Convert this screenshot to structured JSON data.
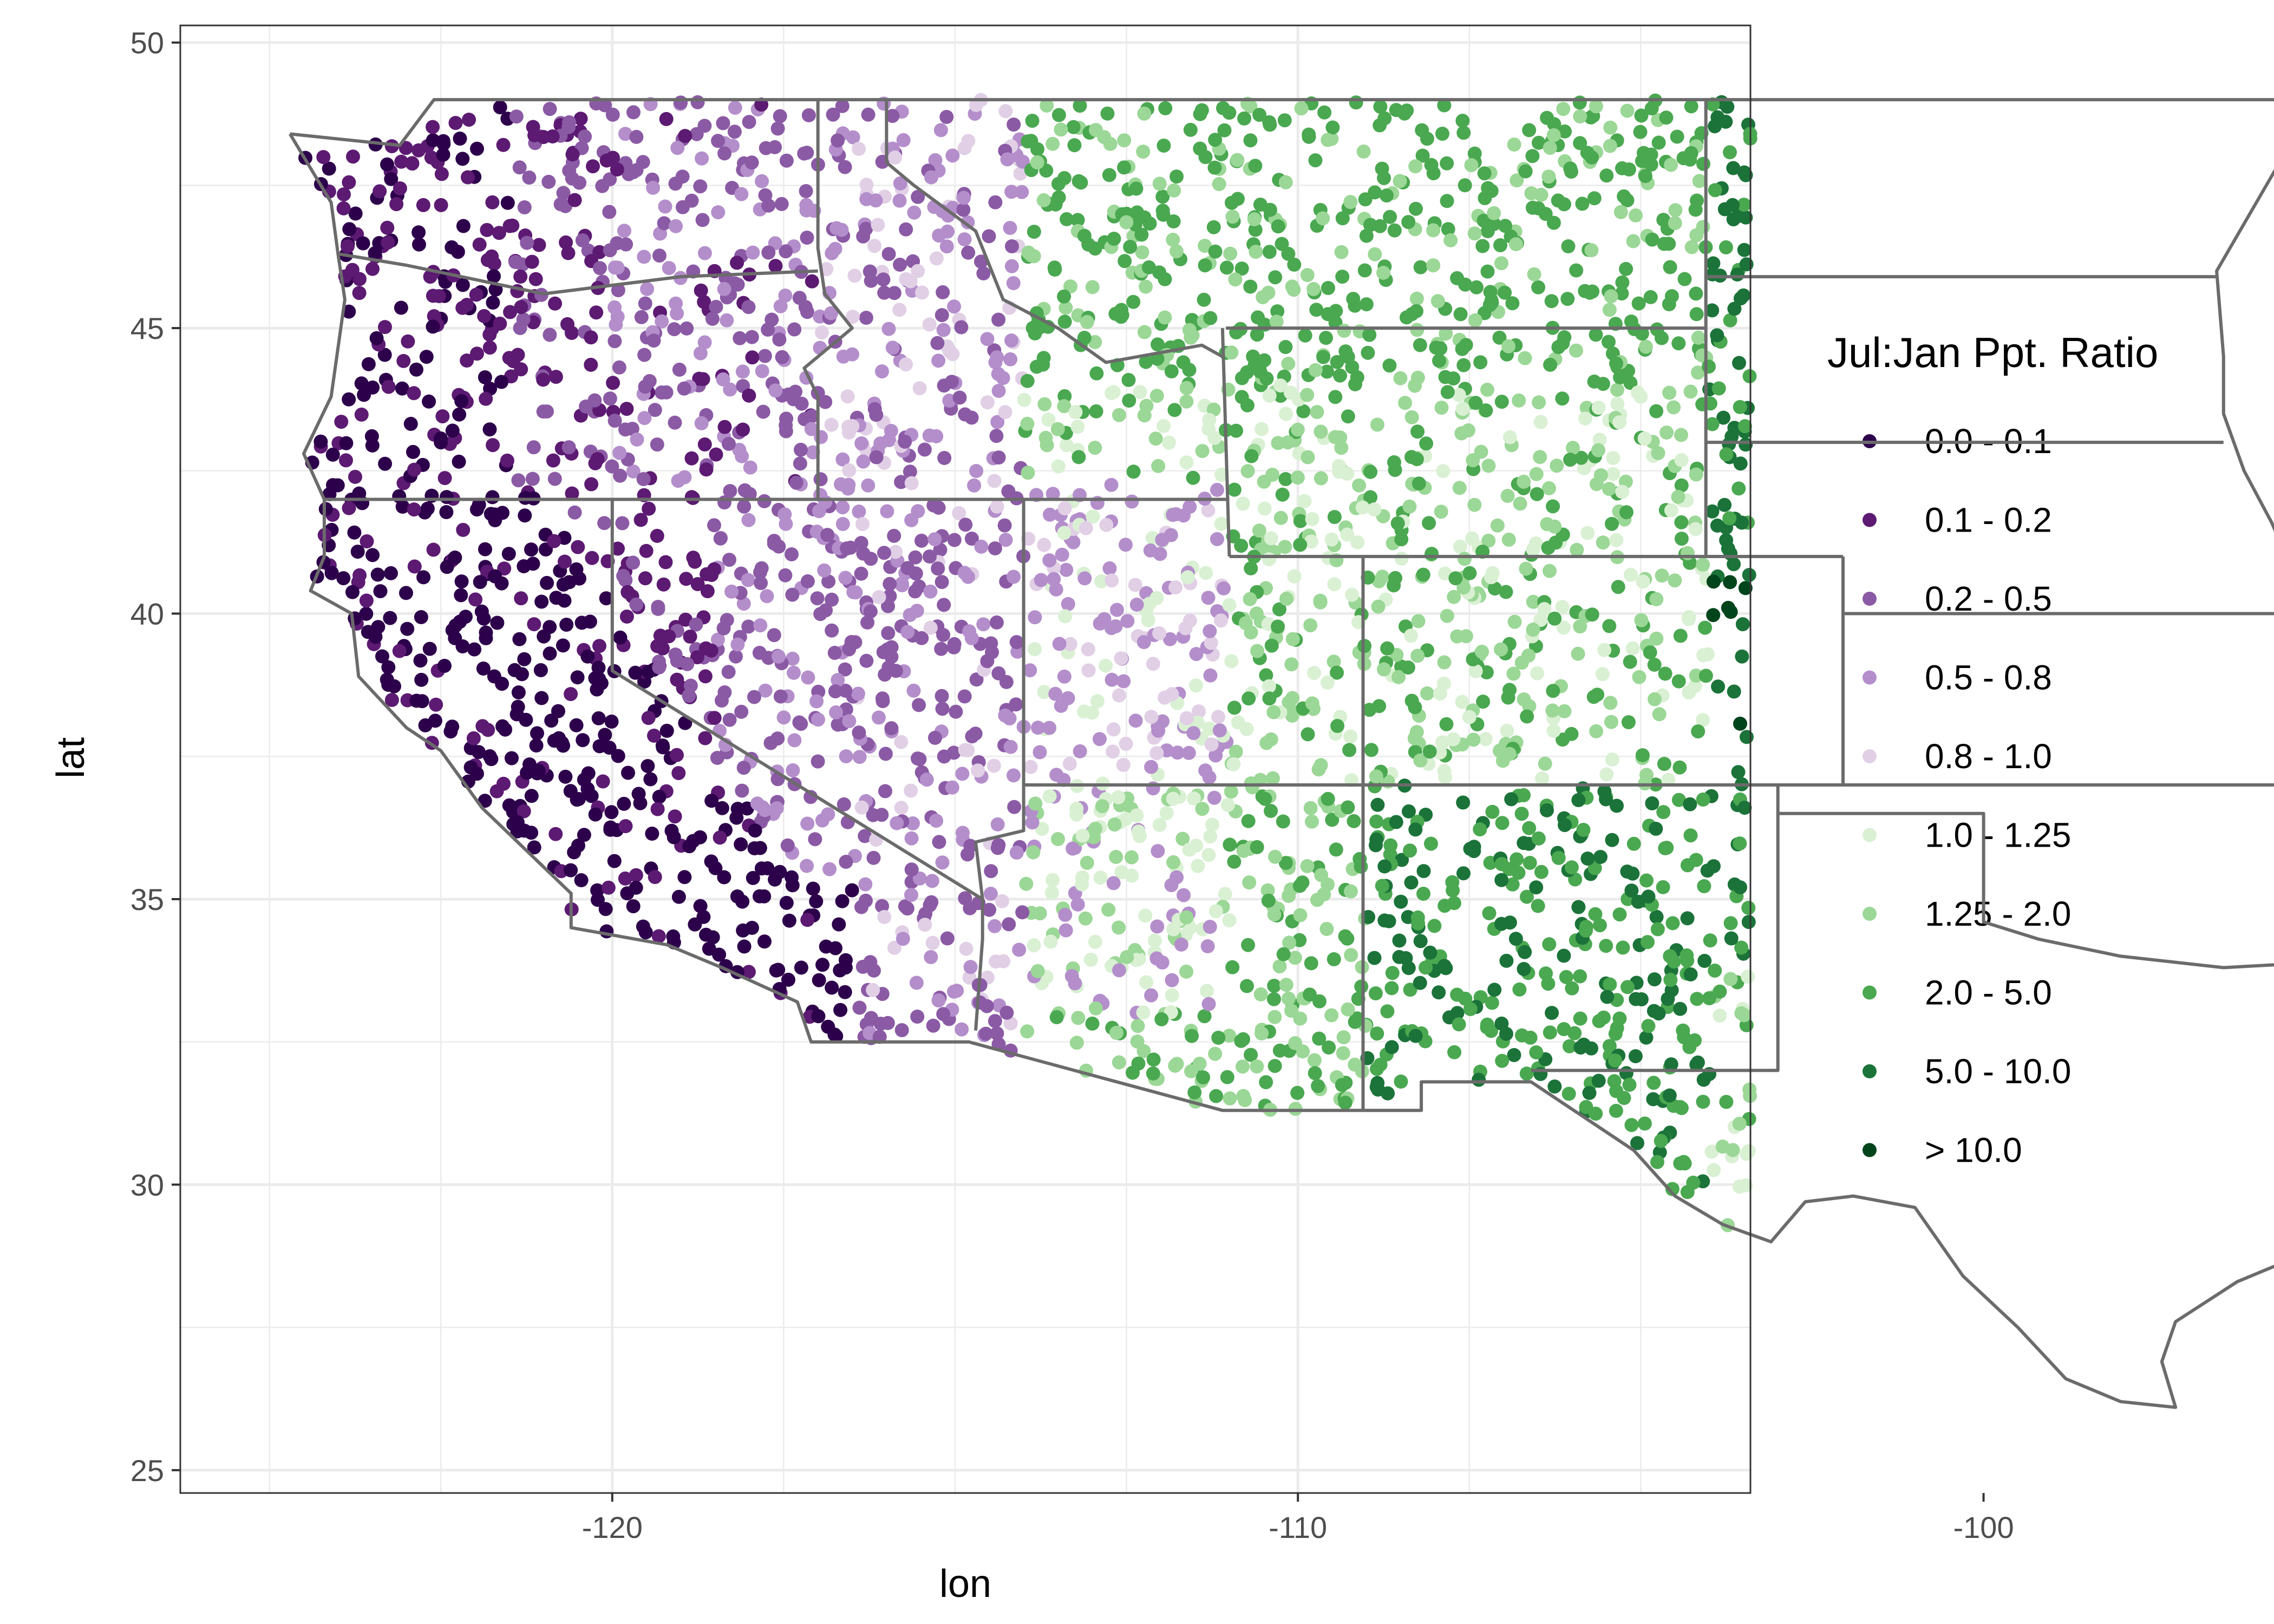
{
  "chart_data": {
    "type": "scatter",
    "subtype": "point map",
    "title": "",
    "xlabel": "lon",
    "ylabel": "lat",
    "xlim": [
      -126.3,
      -103.4
    ],
    "ylim": [
      24.6,
      50.3
    ],
    "xticks": [
      -120,
      -110,
      -100
    ],
    "yticks": [
      25,
      30,
      35,
      40,
      45,
      50
    ],
    "grid": true,
    "panel_border": true,
    "legend": {
      "title": "Jul:Jan Ppt. Ratio",
      "position": "right",
      "entries": [
        {
          "label": "0.0 - 0.1",
          "color": "#2d004b"
        },
        {
          "label": "0.1 - 0.2",
          "color": "#5c1a72"
        },
        {
          "label": "0.2 - 0.5",
          "color": "#8b5aa5"
        },
        {
          "label": "0.5 - 0.8",
          "color": "#b48ecb"
        },
        {
          "label": "0.8 - 1.0",
          "color": "#e1cfe6"
        },
        {
          "label": "1.0 - 1.25",
          "color": "#d9f0d3"
        },
        {
          "label": "1.25 - 2.0",
          "color": "#9bd796"
        },
        {
          "label": "2.0 - 5.0",
          "color": "#4aa850"
        },
        {
          "label": "5.0 - 10.0",
          "color": "#1b7339"
        },
        {
          "label": "> 10.0",
          "color": "#00441b"
        }
      ]
    },
    "state_boundaries": [
      {
        "name": "outer",
        "points": [
          [
            -124.7,
            48.4
          ],
          [
            -123.1,
            48.2
          ],
          [
            -122.6,
            49.0
          ],
          [
            -95.2,
            49.0
          ],
          [
            -95.2,
            48.9
          ],
          [
            -96.6,
            46.0
          ],
          [
            -96.5,
            44.5
          ],
          [
            -96.5,
            43.5
          ],
          [
            -96.2,
            42.5
          ],
          [
            -95.8,
            41.6
          ],
          [
            -95.4,
            40.5
          ],
          [
            -95.0,
            40.0
          ],
          [
            -94.6,
            39.2
          ],
          [
            -94.6,
            36.5
          ],
          [
            -94.4,
            35.5
          ],
          [
            -94.4,
            33.6
          ],
          [
            -94.0,
            33.0
          ],
          [
            -94.0,
            31.5
          ],
          [
            -93.8,
            30.6
          ],
          [
            -93.8,
            29.8
          ],
          [
            -94.7,
            29.4
          ],
          [
            -95.3,
            28.8
          ],
          [
            -96.3,
            28.3
          ],
          [
            -97.2,
            27.6
          ],
          [
            -97.4,
            26.9
          ],
          [
            -97.2,
            26.1
          ],
          [
            -98.0,
            26.2
          ],
          [
            -98.8,
            26.6
          ],
          [
            -99.5,
            27.5
          ],
          [
            -100.3,
            28.4
          ],
          [
            -101.0,
            29.6
          ],
          [
            -101.9,
            29.8
          ],
          [
            -102.6,
            29.7
          ],
          [
            -103.1,
            29.0
          ],
          [
            -103.8,
            29.3
          ],
          [
            -104.5,
            29.8
          ],
          [
            -105.1,
            30.6
          ],
          [
            -106.1,
            31.4
          ],
          [
            -106.6,
            31.8
          ],
          [
            -108.2,
            31.8
          ],
          [
            -108.2,
            31.3
          ],
          [
            -111.1,
            31.3
          ],
          [
            -114.8,
            32.5
          ],
          [
            -117.1,
            32.5
          ],
          [
            -117.3,
            33.2
          ],
          [
            -118.4,
            33.8
          ],
          [
            -119.2,
            34.2
          ],
          [
            -120.6,
            34.5
          ],
          [
            -120.6,
            35.1
          ],
          [
            -121.9,
            36.6
          ],
          [
            -122.5,
            37.6
          ],
          [
            -123.0,
            38.0
          ],
          [
            -123.7,
            38.9
          ],
          [
            -123.8,
            40.0
          ],
          [
            -124.4,
            40.4
          ],
          [
            -124.2,
            41.0
          ],
          [
            -124.2,
            42.0
          ],
          [
            -124.5,
            42.8
          ],
          [
            -124.1,
            43.8
          ],
          [
            -123.9,
            45.5
          ],
          [
            -124.0,
            46.3
          ],
          [
            -124.1,
            47.2
          ],
          [
            -124.7,
            48.4
          ]
        ]
      },
      {
        "name": "wa-or",
        "points": [
          [
            -124.0,
            46.3
          ],
          [
            -123.0,
            46.1
          ],
          [
            -121.0,
            45.6
          ],
          [
            -119.0,
            45.9
          ],
          [
            -117.0,
            46.0
          ]
        ]
      },
      {
        "name": "idaho-west",
        "points": [
          [
            -117.0,
            49.0
          ],
          [
            -117.0,
            46.4
          ],
          [
            -116.9,
            45.6
          ],
          [
            -116.5,
            45.0
          ],
          [
            -117.2,
            44.3
          ],
          [
            -117.0,
            43.8
          ],
          [
            -117.0,
            42.0
          ]
        ]
      },
      {
        "name": "idaho-montana",
        "points": [
          [
            -116.0,
            49.0
          ],
          [
            -116.0,
            47.9
          ],
          [
            -115.6,
            47.5
          ],
          [
            -114.7,
            46.7
          ],
          [
            -114.3,
            45.5
          ],
          [
            -113.5,
            45.0
          ],
          [
            -112.8,
            44.4
          ],
          [
            -111.4,
            44.7
          ],
          [
            -111.1,
            44.5
          ]
        ]
      },
      {
        "name": "lat42",
        "points": [
          [
            -124.2,
            42.0
          ],
          [
            -111.0,
            42.0
          ]
        ]
      },
      {
        "name": "nevada-ca",
        "points": [
          [
            -120.0,
            42.0
          ],
          [
            -120.0,
            39.0
          ],
          [
            -114.6,
            35.0
          ],
          [
            -114.6,
            34.3
          ],
          [
            -114.7,
            32.7
          ]
        ]
      },
      {
        "name": "nevada-ut",
        "points": [
          [
            -114.0,
            42.0
          ],
          [
            -114.0,
            36.2
          ],
          [
            -114.7,
            36.0
          ],
          [
            -114.6,
            35.0
          ]
        ]
      },
      {
        "name": "wy-west",
        "points": [
          [
            -111.1,
            45.0
          ],
          [
            -111.0,
            41.0
          ]
        ]
      },
      {
        "name": "utah-ne",
        "points": [
          [
            -111.0,
            41.0
          ],
          [
            -109.05,
            41.0
          ],
          [
            -109.05,
            37.0
          ]
        ]
      },
      {
        "name": "lat41-east",
        "points": [
          [
            -109.05,
            41.0
          ],
          [
            -102.05,
            41.0
          ]
        ]
      },
      {
        "name": "az-nm",
        "points": [
          [
            -109.05,
            37.0
          ],
          [
            -109.05,
            31.3
          ]
        ]
      },
      {
        "name": "lat37",
        "points": [
          [
            -114.0,
            37.0
          ],
          [
            -94.6,
            37.0
          ]
        ]
      },
      {
        "name": "wy-north",
        "points": [
          [
            -111.05,
            45.0
          ],
          [
            -104.05,
            45.0
          ]
        ]
      },
      {
        "name": "mt-dakotas",
        "points": [
          [
            -104.05,
            49.0
          ],
          [
            -104.05,
            41.0
          ]
        ]
      },
      {
        "name": "nd-sd",
        "points": [
          [
            -104.05,
            45.9
          ],
          [
            -96.6,
            45.9
          ]
        ]
      },
      {
        "name": "sd-ne",
        "points": [
          [
            -104.05,
            43.0
          ],
          [
            -96.5,
            43.0
          ]
        ]
      },
      {
        "name": "co-ks",
        "points": [
          [
            -102.05,
            41.0
          ],
          [
            -102.05,
            37.0
          ]
        ]
      },
      {
        "name": "ne-ks",
        "points": [
          [
            -102.05,
            40.0
          ],
          [
            -95.3,
            40.0
          ]
        ]
      },
      {
        "name": "panhandle-west",
        "points": [
          [
            -103.0,
            37.0
          ],
          [
            -103.0,
            32.0
          ],
          [
            -106.6,
            32.0
          ]
        ]
      },
      {
        "name": "panhandle-north",
        "points": [
          [
            -103.0,
            36.5
          ],
          [
            -100.0,
            36.5
          ],
          [
            -100.0,
            34.6
          ],
          [
            -99.2,
            34.3
          ],
          [
            -98.0,
            34.0
          ],
          [
            -96.5,
            33.8
          ],
          [
            -95.0,
            33.9
          ],
          [
            -94.4,
            33.6
          ]
        ]
      }
    ]
  }
}
